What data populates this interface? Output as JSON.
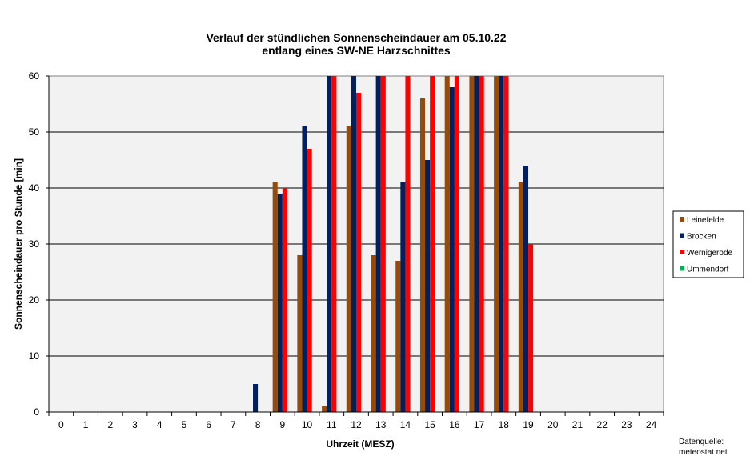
{
  "chart_data": {
    "type": "bar",
    "title": [
      "Verlauf der stündlichen Sonnenscheindauer am 05.10.22",
      "entlang eines SW-NE Harzschnittes"
    ],
    "xlabel": "Uhrzeit (MESZ)",
    "ylabel": "Sonnenscheindauer pro Stunde [min]",
    "ylim": [
      0,
      60
    ],
    "yticks": [
      0,
      10,
      20,
      30,
      40,
      50,
      60
    ],
    "grid": true,
    "legend_position": "right",
    "categories": [
      "0",
      "1",
      "2",
      "3",
      "4",
      "5",
      "6",
      "7",
      "8",
      "9",
      "10",
      "11",
      "12",
      "13",
      "14",
      "15",
      "16",
      "17",
      "18",
      "19",
      "20",
      "21",
      "22",
      "23",
      "24"
    ],
    "series": [
      {
        "name": "Leinefelde",
        "color": "#964B0A",
        "values": [
          0,
          0,
          0,
          0,
          0,
          0,
          0,
          0,
          0,
          41,
          28,
          1,
          51,
          28,
          27,
          56,
          60,
          60,
          60,
          41,
          0,
          0,
          0,
          0,
          0
        ]
      },
      {
        "name": "Brocken",
        "color": "#002060",
        "values": [
          0,
          0,
          0,
          0,
          0,
          0,
          0,
          0,
          5,
          39,
          51,
          60,
          60,
          60,
          41,
          45,
          58,
          60,
          60,
          44,
          0,
          0,
          0,
          0,
          0
        ]
      },
      {
        "name": "Wernigerode",
        "color": "#FF0000",
        "values": [
          0,
          0,
          0,
          0,
          0,
          0,
          0,
          0,
          0,
          40,
          47,
          60,
          57,
          60,
          60,
          60,
          60,
          60,
          60,
          30,
          0,
          0,
          0,
          0,
          0
        ]
      },
      {
        "name": "Ummendorf",
        "color": "#00B050",
        "values": [
          0,
          0,
          0,
          0,
          0,
          0,
          0,
          0,
          0,
          0,
          0,
          0,
          0,
          0,
          0,
          0,
          0,
          0,
          0,
          0,
          0,
          0,
          0,
          0,
          0
        ]
      }
    ],
    "source_note": [
      "Datenquelle:",
      "meteostat.net"
    ]
  }
}
